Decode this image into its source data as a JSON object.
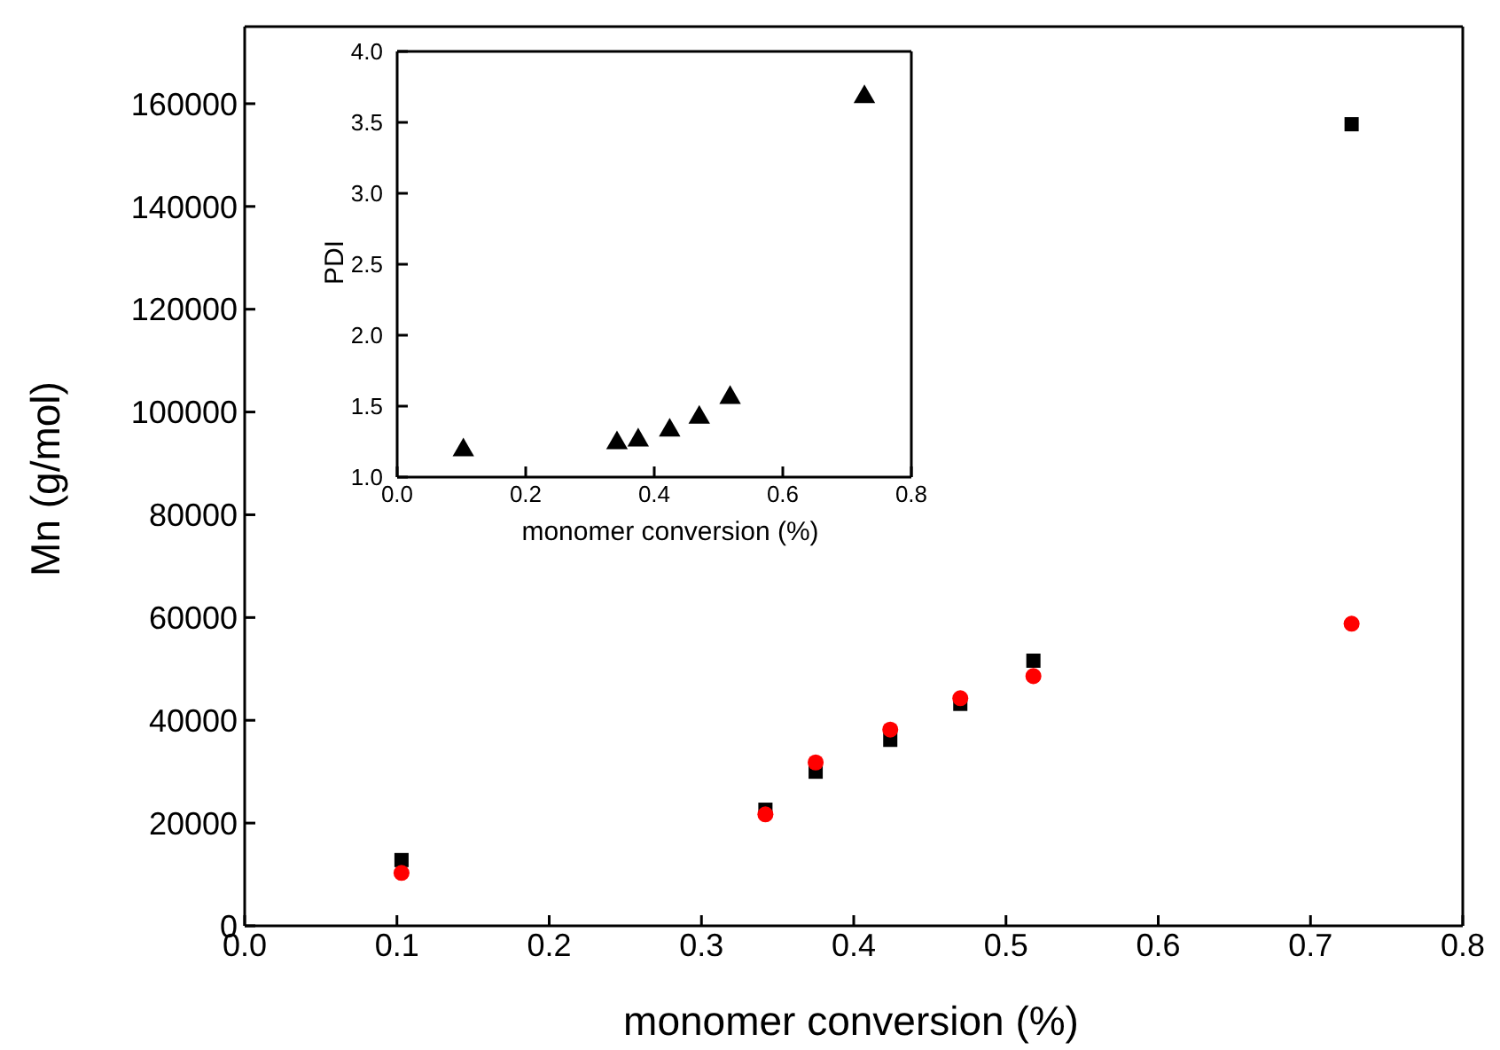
{
  "chart_data": [
    {
      "type": "scatter",
      "xlabel": "monomer conversion (%)",
      "ylabel": "Mn (g/mol)",
      "x": [
        0.103,
        0.342,
        0.375,
        0.424,
        0.47,
        0.518,
        0.727
      ],
      "series": [
        {
          "color": "#000000",
          "marker": "square",
          "values": [
            12800,
            22600,
            30000,
            36200,
            43200,
            51600,
            156000
          ]
        },
        {
          "color": "#ff0000",
          "marker": "circle",
          "values": [
            10300,
            21700,
            31800,
            38200,
            44300,
            48600,
            58800
          ]
        }
      ],
      "xlim": [
        0,
        0.8
      ],
      "xticks": [
        {
          "value": 0,
          "label": "0.0"
        },
        0.1,
        0.2,
        0.3,
        0.4,
        0.5,
        0.6,
        0.7,
        0.8
      ],
      "ylim": [
        0,
        175000
      ],
      "yticks": [
        0,
        20000,
        40000,
        60000,
        80000,
        100000,
        120000,
        140000,
        160000
      ]
    },
    {
      "type": "scatter",
      "xlabel": "monomer conversion (%)",
      "ylabel": "PDI",
      "x": [
        0.103,
        0.342,
        0.375,
        0.424,
        0.47,
        0.518,
        0.727
      ],
      "series": [
        {
          "color": "#000000",
          "marker": "triangle",
          "values": [
            1.19,
            1.24,
            1.26,
            1.33,
            1.42,
            1.56,
            3.68
          ]
        }
      ],
      "xlim": [
        0,
        0.8
      ],
      "xticks": [
        {
          "value": 0,
          "label": "0.0"
        },
        0.2,
        0.4,
        0.6,
        0.8
      ],
      "ylim": [
        1,
        4
      ],
      "yticks": [
        {
          "value": 1,
          "label": "1.0"
        },
        1.5,
        {
          "value": 2,
          "label": "2.0"
        },
        2.5,
        {
          "value": 3,
          "label": "3.0"
        },
        3.5,
        {
          "value": 4,
          "label": "4.0"
        }
      ]
    }
  ]
}
